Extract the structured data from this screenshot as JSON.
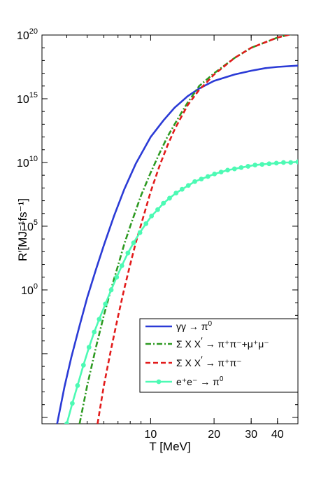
{
  "chart_data": {
    "type": "line",
    "xlabel": "T [MeV]",
    "ylabel_html": "R′[MJ⁻¹fs⁻¹]",
    "x_scale": "log",
    "y_scale": "log",
    "xlim": [
      3.05,
      50
    ],
    "ylim_log10": [
      -10.5,
      20
    ],
    "x_ticks": [
      {
        "value": 10,
        "label": "10"
      },
      {
        "value": 20,
        "label": "20"
      },
      {
        "value": 30,
        "label": "30"
      },
      {
        "value": 40,
        "label": "40"
      }
    ],
    "y_ticks": [
      {
        "exp": 0,
        "base": "10",
        "sup": "0"
      },
      {
        "exp": 5,
        "base": "10",
        "sup": "5"
      },
      {
        "exp": 10,
        "base": "10",
        "sup": "10"
      },
      {
        "exp": 15,
        "base": "10",
        "sup": "15"
      },
      {
        "exp": 20,
        "base": "10",
        "sup": "20"
      }
    ],
    "series": [
      {
        "name": "γγ → π⁰",
        "color": "#2b3bd6",
        "style": "solid",
        "x": [
          3.6,
          3.9,
          4.2,
          4.6,
          5.0,
          5.5,
          6.0,
          6.7,
          7.5,
          8.5,
          10,
          11.5,
          13,
          15,
          17,
          20,
          25,
          30,
          35,
          40,
          50
        ],
        "y_log10": [
          -10.5,
          -7.6,
          -5.3,
          -2.8,
          -0.6,
          1.6,
          3.5,
          5.8,
          7.9,
          9.9,
          12.0,
          13.3,
          14.3,
          15.2,
          15.8,
          16.4,
          16.9,
          17.2,
          17.4,
          17.5,
          17.6
        ]
      },
      {
        "name": "Σ X X′ → π⁺π⁻+μ⁺μ⁻",
        "color": "#2e9a22",
        "style": "dashdot",
        "x": [
          4.6,
          5.0,
          5.5,
          6.0,
          6.5,
          7.0,
          7.5,
          8.0,
          9.0,
          10,
          11,
          12,
          13,
          14,
          15,
          17,
          20,
          25,
          30,
          40,
          50
        ],
        "y_log10": [
          -10.5,
          -7.5,
          -4.5,
          -2.0,
          0.1,
          1.9,
          3.6,
          5.0,
          7.4,
          9.2,
          10.7,
          12.0,
          13.0,
          13.9,
          14.7,
          16.0,
          17.0,
          18.2,
          19.0,
          19.8,
          20.2
        ]
      },
      {
        "name": "Σ X X′ → π⁺π⁻",
        "color": "#e21b1b",
        "style": "dashed",
        "x": [
          5.6,
          6.0,
          6.5,
          7.0,
          7.5,
          8.0,
          8.5,
          9.0,
          10,
          11,
          12,
          13,
          14,
          15,
          17,
          18,
          20,
          25,
          30,
          40,
          50
        ],
        "y_log10": [
          -10.5,
          -7.5,
          -4.6,
          -2.1,
          0.1,
          2.0,
          3.7,
          5.1,
          7.7,
          9.7,
          11.3,
          12.6,
          13.6,
          14.5,
          15.7,
          16.1,
          16.9,
          18.2,
          19.0,
          19.8,
          20.2
        ]
      },
      {
        "name": "e⁺e⁻ → π⁰",
        "color": "#4dfab4",
        "style": "solid-markers",
        "x": [
          4.0,
          4.25,
          4.5,
          4.8,
          5.1,
          5.4,
          5.7,
          6.1,
          6.5,
          6.9,
          7.3,
          7.8,
          8.3,
          8.9,
          9.5,
          10.1,
          10.8,
          11.5,
          12.3,
          13.2,
          14.1,
          15.1,
          16.2,
          17.4,
          18.7,
          20.1,
          21.6,
          23.2,
          25.0,
          26.9,
          29.0,
          31.3,
          33.8,
          36.5,
          39.5,
          42.7,
          46.2,
          50.0
        ],
        "y_log10": [
          -10.5,
          -8.9,
          -7.5,
          -5.9,
          -4.5,
          -3.3,
          -2.3,
          -1.1,
          0.0,
          1.0,
          1.9,
          2.9,
          3.7,
          4.5,
          5.2,
          5.8,
          6.3,
          6.8,
          7.2,
          7.6,
          7.9,
          8.2,
          8.5,
          8.7,
          8.9,
          9.1,
          9.25,
          9.4,
          9.5,
          9.6,
          9.7,
          9.8,
          9.85,
          9.9,
          9.95,
          10.0,
          10.0,
          10.05
        ]
      }
    ],
    "legend": {
      "placement": "lower-right",
      "entries": [
        {
          "label_main": "γγ",
          "label_arrow": "→",
          "label_tail": "π",
          "label_sup": "0"
        },
        {
          "label_main": "Σ X X",
          "label_prime": "′",
          "label_arrow": "→",
          "label_tail": "π⁺π⁻+μ⁺μ⁻"
        },
        {
          "label_main": "Σ X X",
          "label_prime": "′",
          "label_arrow": "→",
          "label_tail": "π⁺π⁻"
        },
        {
          "label_main": "e⁺e⁻",
          "label_arrow": "→",
          "label_tail": "π",
          "label_sup": "0"
        }
      ]
    }
  }
}
